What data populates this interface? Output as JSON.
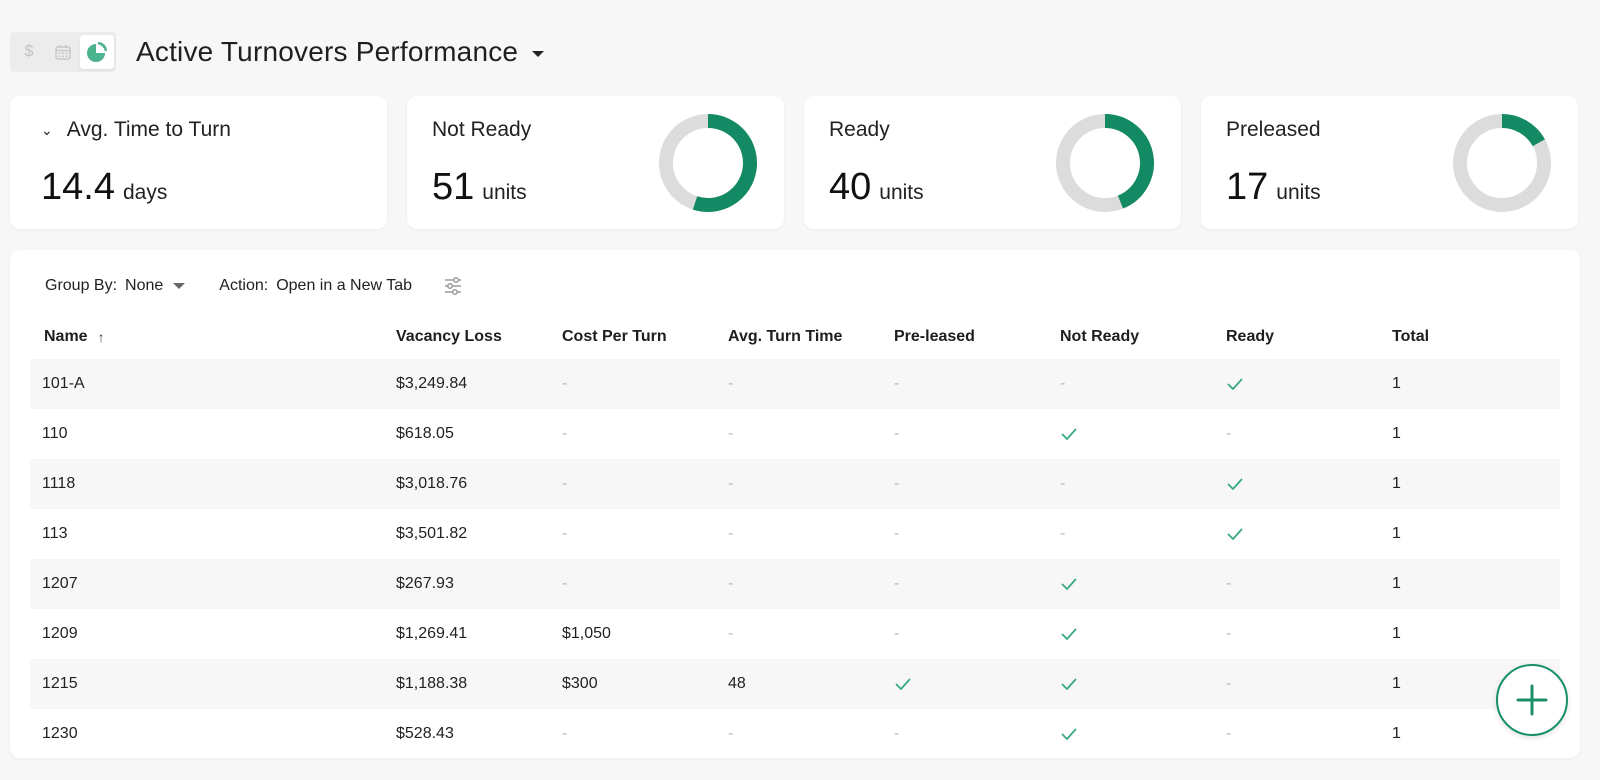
{
  "header": {
    "title": "Active Turnovers Performance",
    "view_icons": [
      "dollar-icon",
      "calendar-icon",
      "pie-chart-icon"
    ],
    "dollar_glyph": "$"
  },
  "kpis": [
    {
      "label": "Avg. Time to Turn",
      "value": "14.4",
      "unit": "days",
      "collapsible": true
    },
    {
      "label": "Not Ready",
      "value": "51",
      "unit": "units",
      "fraction": 0.55
    },
    {
      "label": "Ready",
      "value": "40",
      "unit": "units",
      "fraction": 0.44
    },
    {
      "label": "Preleased",
      "value": "17",
      "unit": "units",
      "fraction": 0.17
    }
  ],
  "colors": {
    "accent": "#138a63",
    "ring_bg": "#dcdcdc",
    "check": "#3aa882"
  },
  "toolbar": {
    "group_by_label": "Group By:",
    "group_by_value": "None",
    "action_label": "Action:",
    "action_value": "Open in a New Tab"
  },
  "table": {
    "columns": [
      "Name",
      "Vacancy Loss",
      "Cost Per Turn",
      "Avg. Turn Time",
      "Pre-leased",
      "Not Ready",
      "Ready",
      "Total"
    ],
    "rows": [
      {
        "name": "101-A",
        "vacancy": "$3,249.84",
        "cost": "-",
        "turn": "-",
        "pre": false,
        "nr": false,
        "ready": true,
        "total": "1"
      },
      {
        "name": "110",
        "vacancy": "$618.05",
        "cost": "-",
        "turn": "-",
        "pre": false,
        "nr": true,
        "ready": false,
        "total": "1"
      },
      {
        "name": "1118",
        "vacancy": "$3,018.76",
        "cost": "-",
        "turn": "-",
        "pre": false,
        "nr": false,
        "ready": true,
        "total": "1"
      },
      {
        "name": "113",
        "vacancy": "$3,501.82",
        "cost": "-",
        "turn": "-",
        "pre": false,
        "nr": false,
        "ready": true,
        "total": "1"
      },
      {
        "name": "1207",
        "vacancy": "$267.93",
        "cost": "-",
        "turn": "-",
        "pre": false,
        "nr": true,
        "ready": false,
        "total": "1"
      },
      {
        "name": "1209",
        "vacancy": "$1,269.41",
        "cost": "$1,050",
        "turn": "-",
        "pre": false,
        "nr": true,
        "ready": false,
        "total": "1"
      },
      {
        "name": "1215",
        "vacancy": "$1,188.38",
        "cost": "$300",
        "turn": "48",
        "pre": true,
        "nr": true,
        "ready": false,
        "total": "1"
      },
      {
        "name": "1230",
        "vacancy": "$528.43",
        "cost": "-",
        "turn": "-",
        "pre": false,
        "nr": true,
        "ready": false,
        "total": "1"
      }
    ]
  },
  "fab": {
    "icon": "plus-icon"
  }
}
